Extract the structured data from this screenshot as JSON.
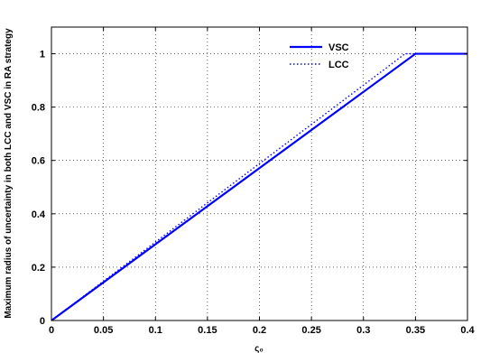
{
  "chart_data": {
    "type": "line",
    "xlabel": "ς₀",
    "ylabel": "Maximum radius of uncertainty in both LCC and VSC in RA strategy",
    "xlim": [
      0,
      0.4
    ],
    "ylim": [
      0,
      1.1
    ],
    "x_ticks": [
      "0",
      "0.05",
      "0.1",
      "0.15",
      "0.2",
      "0.25",
      "0.3",
      "0.35",
      "0.4"
    ],
    "y_ticks": [
      "0",
      "0.2",
      "0.4",
      "0.6",
      "0.8",
      "1"
    ],
    "grid": true,
    "legend_position": "top-right",
    "series": [
      {
        "name": "VSC",
        "style": "solid",
        "color": "#0000ff",
        "x": [
          0,
          0.35,
          0.4
        ],
        "y": [
          0,
          1,
          1
        ]
      },
      {
        "name": "LCC",
        "style": "dotted",
        "color": "#0000ff",
        "x": [
          0,
          0.34,
          0.4
        ],
        "y": [
          0,
          1,
          1
        ]
      }
    ]
  }
}
